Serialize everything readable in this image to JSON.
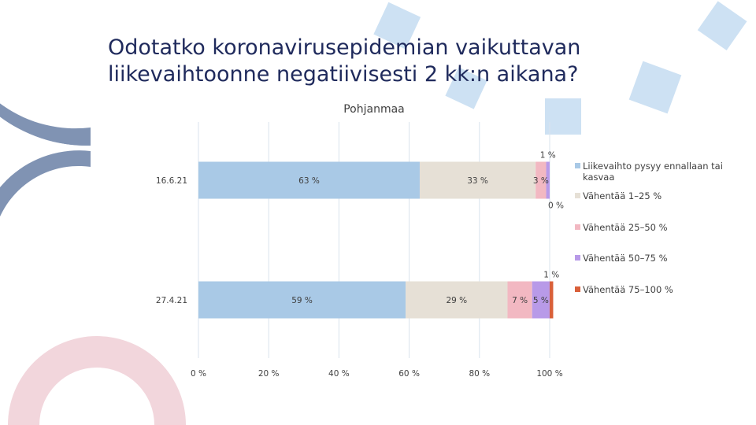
{
  "slide": {
    "title": "Odotatko koronavirusepidemian vaikuttavan liikevaihtoonne negatiivisesti 2 kk:n aikana?"
  },
  "chart_data": {
    "type": "bar",
    "orientation": "horizontal",
    "stacked": true,
    "title": "Pohjanmaa",
    "categories": [
      "16.6.21",
      "27.4.21"
    ],
    "series": [
      {
        "name": "Liikevaihto pysyy ennallaan tai kasvaa",
        "color": "#a9c9e6",
        "values": [
          63,
          59
        ],
        "labels": [
          "63 %",
          "59 %"
        ]
      },
      {
        "name": "Vähentää 1–25 %",
        "color": "#e6e0d6",
        "values": [
          33,
          29
        ],
        "labels": [
          "33 %",
          "29 %"
        ]
      },
      {
        "name": "Vähentää 25–50 %",
        "color": "#f2b8c2",
        "values": [
          3,
          7
        ],
        "labels": [
          "3 %",
          "7 %"
        ]
      },
      {
        "name": "Vähentää 50–75 %",
        "color": "#b89ae8",
        "values": [
          1,
          5
        ],
        "labels": [
          "1 %",
          "5 %"
        ]
      },
      {
        "name": "Vähentää 75–100 %",
        "color": "#d9603a",
        "values": [
          0,
          1
        ],
        "labels": [
          "0 %",
          "1 %"
        ]
      }
    ],
    "x_ticks": [
      "0 %",
      "20 %",
      "40 %",
      "60 %",
      "80 %",
      "100 %"
    ],
    "xlim": [
      0,
      100
    ],
    "grid": true,
    "legend_position": "right"
  }
}
